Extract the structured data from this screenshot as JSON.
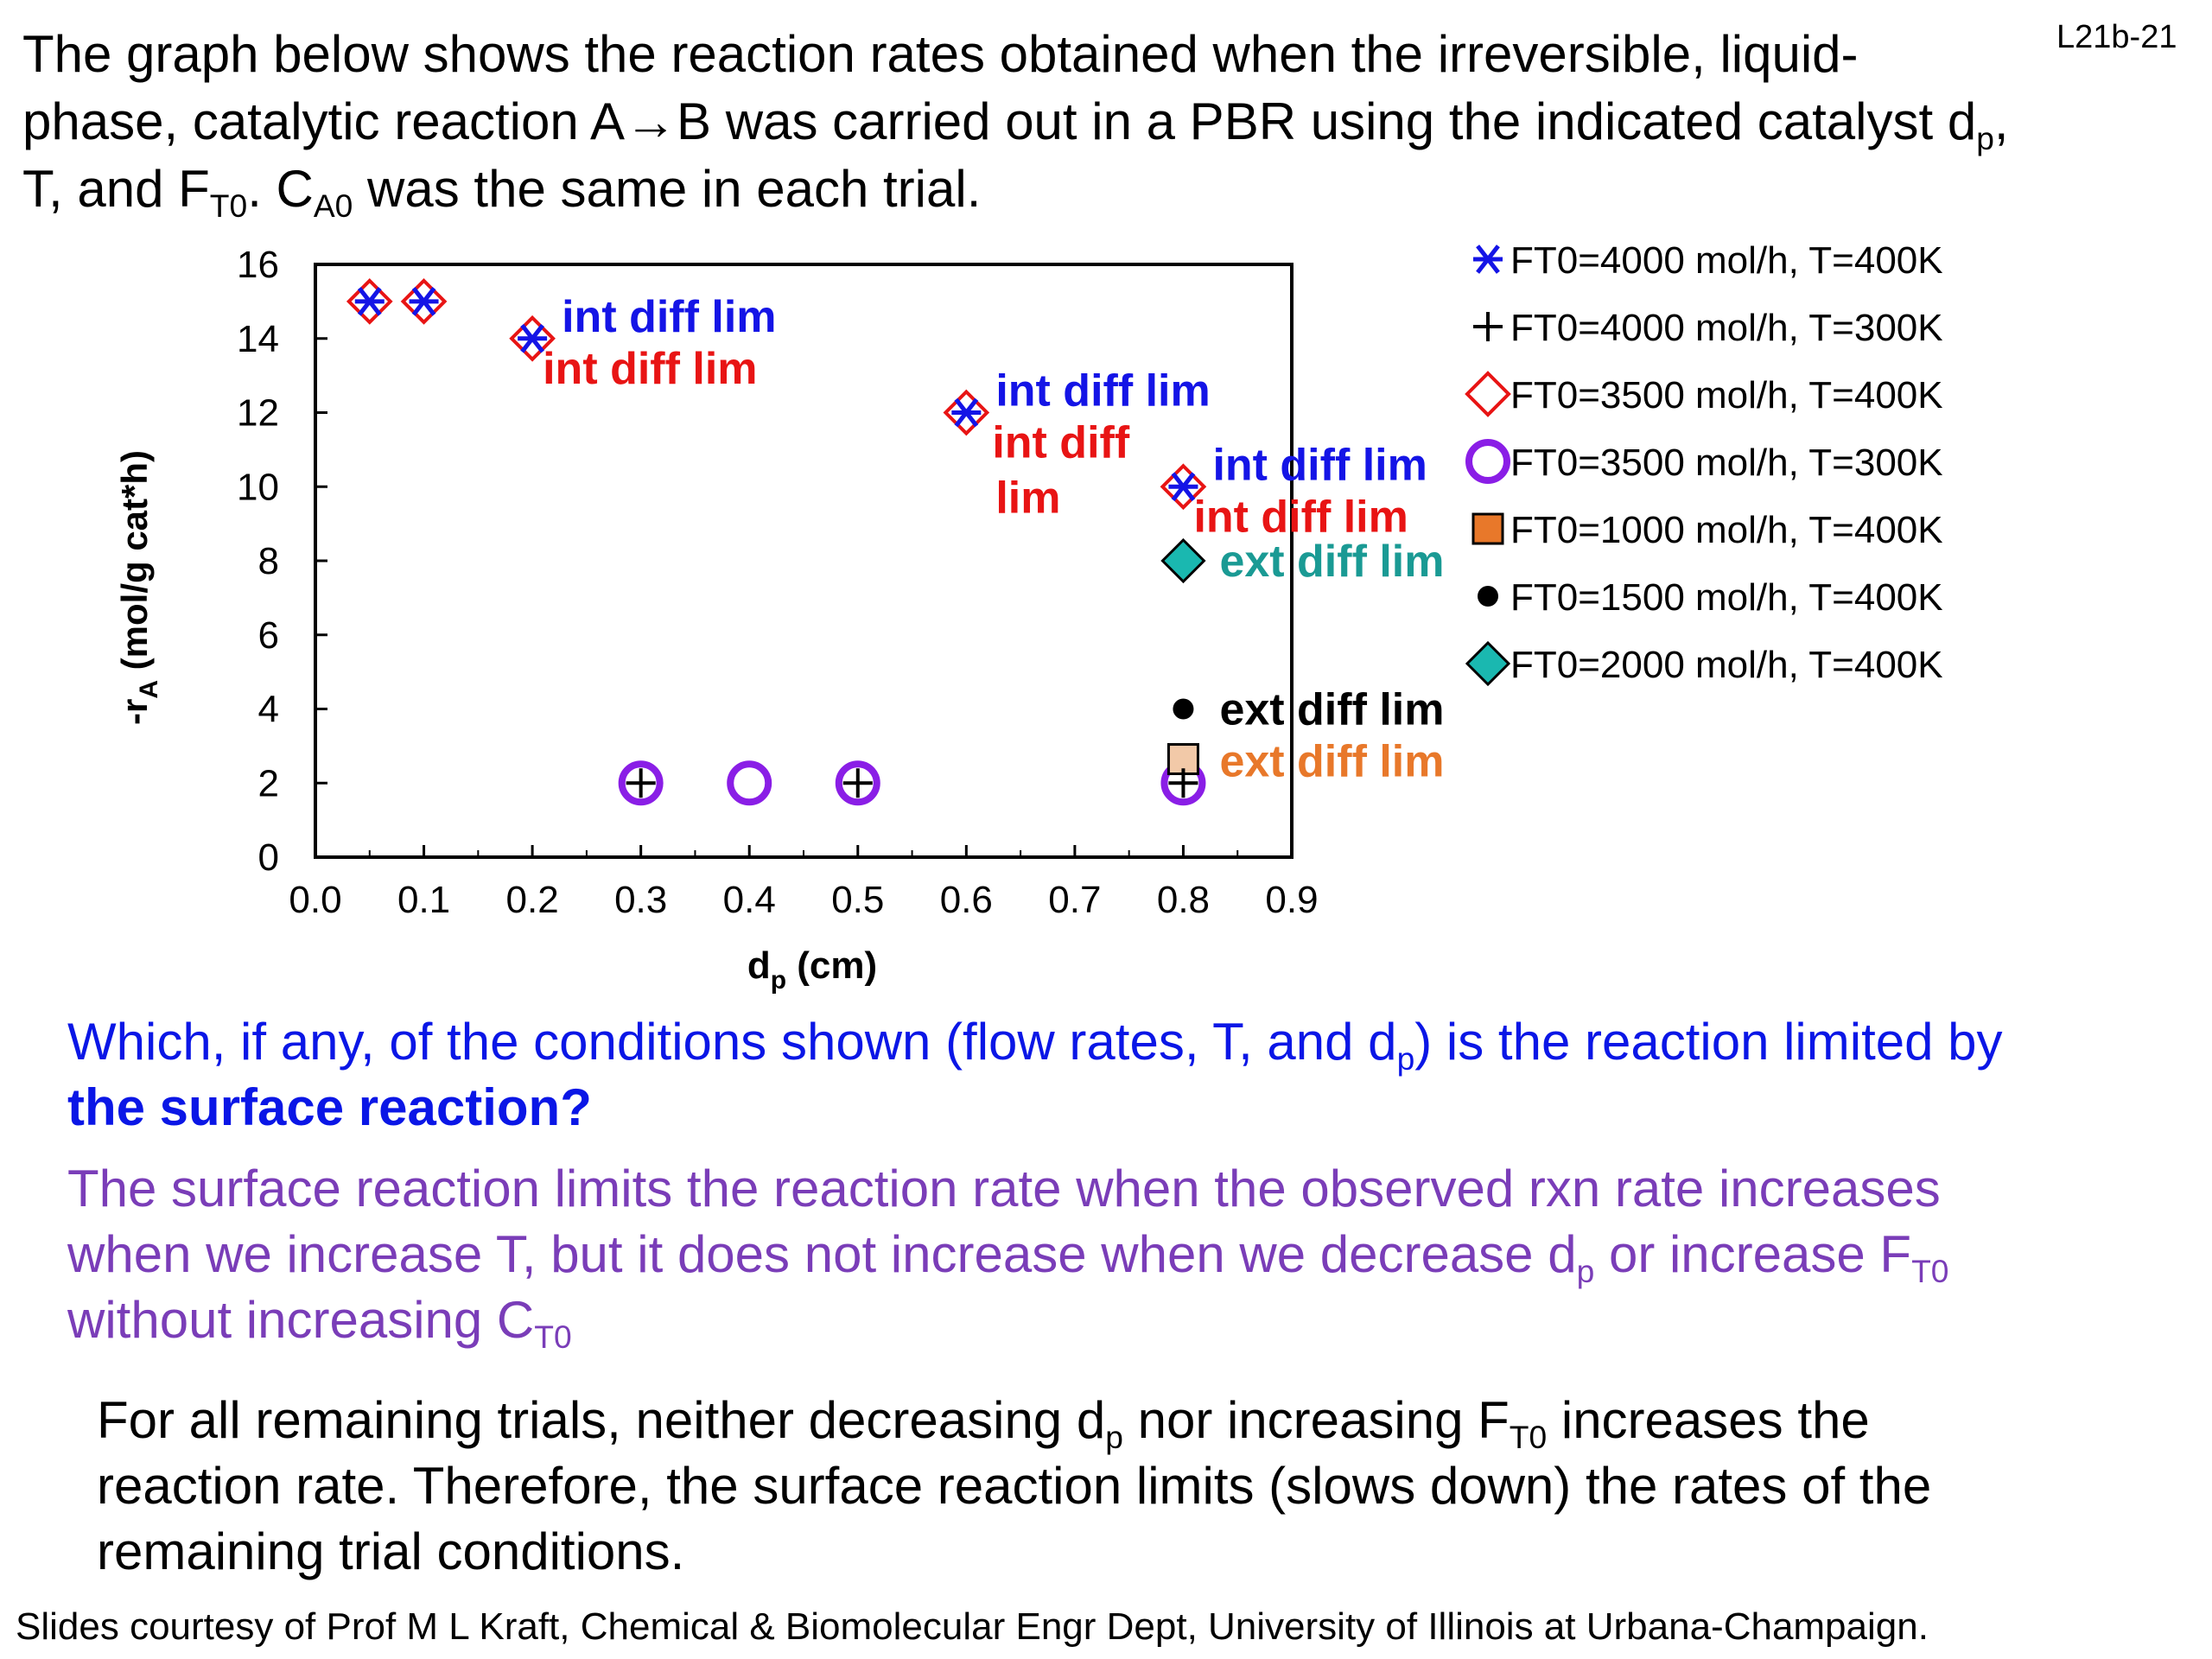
{
  "slide": {
    "id": "L21b-21",
    "intro": {
      "line1": "The graph below shows the reaction rates obtained when the irreversible, liquid-",
      "line2_a": "phase, catalytic reaction A→B was carried out in a PBR using the indicated catalyst d",
      "line2_sub": "p",
      "line2_b": ",",
      "line3_a": "T, and F",
      "line3_sub1": "T0",
      "line3_b": ". C",
      "line3_sub2": "A0",
      "line3_c": " was the same in each trial."
    },
    "question": {
      "a": "Which, if any, of the conditions shown (flow rates, T, and d",
      "sub": "p",
      "b": ") is the reaction limited by",
      "bold": "the surface reaction?"
    },
    "answer": {
      "line1": "The surface reaction limits the reaction rate when the observed rxn rate increases",
      "line2_a": "when we increase T, but it does not increase when we decrease d",
      "line2_sub1": "p",
      "line2_b": " or increase F",
      "line2_sub2": "T0",
      "line3_a": "without increasing C",
      "line3_sub": "T0"
    },
    "conclusion": {
      "line1_a": "For all remaining trials, neither decreasing d",
      "line1_sub1": "p",
      "line1_b": " nor increasing F",
      "line1_sub2": "T0",
      "line1_c": " increases the",
      "line2": "reaction rate.  Therefore, the surface reaction limits (slows down) the rates of the",
      "line3": "remaining trial conditions."
    },
    "credit": "Slides courtesy of Prof M L Kraft, Chemical & Biomolecular Engr Dept, University of Illinois at Urbana-Champaign."
  },
  "chart_data": {
    "type": "scatter",
    "title": "",
    "xlabel": "d",
    "xlabel_sub": "p",
    "xlabel_unit": " (cm)",
    "ylabel": "-r",
    "ylabel_sub": "A",
    "ylabel_unit": " (mol/g cat*h)",
    "xlim": [
      0,
      0.9
    ],
    "ylim": [
      0,
      16
    ],
    "x_ticks": [
      "0.0",
      "0.1",
      "0.2",
      "0.3",
      "0.4",
      "0.5",
      "0.6",
      "0.7",
      "0.8",
      "0.9"
    ],
    "y_ticks": [
      "0",
      "2",
      "4",
      "6",
      "8",
      "10",
      "12",
      "14",
      "16"
    ],
    "grid": false,
    "legend_position": "right",
    "series": [
      {
        "name": "FT0=4000 mol/h, T=400K",
        "marker": "asterisk",
        "color": "#1414e6",
        "points": [
          [
            0.05,
            15
          ],
          [
            0.1,
            15
          ],
          [
            0.2,
            14
          ],
          [
            0.6,
            12
          ],
          [
            0.8,
            10
          ]
        ]
      },
      {
        "name": "FT0=4000 mol/h, T=300K",
        "marker": "plus",
        "color": "#000000",
        "points": [
          [
            0.3,
            2
          ],
          [
            0.5,
            2
          ],
          [
            0.8,
            2
          ]
        ]
      },
      {
        "name": "FT0=3500 mol/h, T=400K",
        "marker": "diamond-open",
        "color": "#e81414",
        "points": [
          [
            0.05,
            15
          ],
          [
            0.1,
            15
          ],
          [
            0.2,
            14
          ],
          [
            0.6,
            12
          ],
          [
            0.8,
            10
          ]
        ]
      },
      {
        "name": "FT0=3500 mol/h, T=300K",
        "marker": "circle-open",
        "color": "#8a1ee6",
        "points": [
          [
            0.3,
            2
          ],
          [
            0.4,
            2
          ],
          [
            0.5,
            2
          ],
          [
            0.8,
            2
          ]
        ]
      },
      {
        "name": "FT0=1000 mol/h, T=400K",
        "marker": "square",
        "color": "#e8782a",
        "points": [
          [
            0.8,
            2.6
          ]
        ]
      },
      {
        "name": "FT0=1500 mol/h, T=400K",
        "marker": "dot",
        "color": "#000000",
        "points": [
          [
            0.8,
            4
          ]
        ]
      },
      {
        "name": "FT0=2000 mol/h, T=400K",
        "marker": "diamond-filled",
        "color": "#1ab8b0",
        "points": [
          [
            0.8,
            8
          ]
        ]
      }
    ],
    "annotations": [
      {
        "text": "int diff lim",
        "color": "#1414e6",
        "x": 0.2,
        "y": 14,
        "anchor": "right-above"
      },
      {
        "text": "int diff lim",
        "color": "#e81414",
        "x": 0.2,
        "y": 14,
        "anchor": "right-below"
      },
      {
        "text": "int diff lim",
        "color": "#1414e6",
        "x": 0.6,
        "y": 12,
        "anchor": "right-above"
      },
      {
        "text": "int diff",
        "color": "#e81414",
        "x": 0.6,
        "y": 12,
        "anchor": "right-below"
      },
      {
        "text": "lim",
        "color": "#e81414",
        "x": 0.6,
        "y": 12,
        "anchor": "right-below-2"
      },
      {
        "text": "int diff lim",
        "color": "#1414e6",
        "x": 0.8,
        "y": 10,
        "anchor": "right-above"
      },
      {
        "text": "int diff lim",
        "color": "#e81414",
        "x": 0.8,
        "y": 10,
        "anchor": "right-below"
      },
      {
        "text": "ext diff lim",
        "color": "#1a9a94",
        "x": 0.8,
        "y": 8,
        "anchor": "right"
      },
      {
        "text": "ext diff lim",
        "color": "#000000",
        "x": 0.8,
        "y": 4,
        "anchor": "right"
      },
      {
        "text": "ext diff lim",
        "color": "#e8782a",
        "x": 0.8,
        "y": 2.6,
        "anchor": "right"
      }
    ]
  }
}
